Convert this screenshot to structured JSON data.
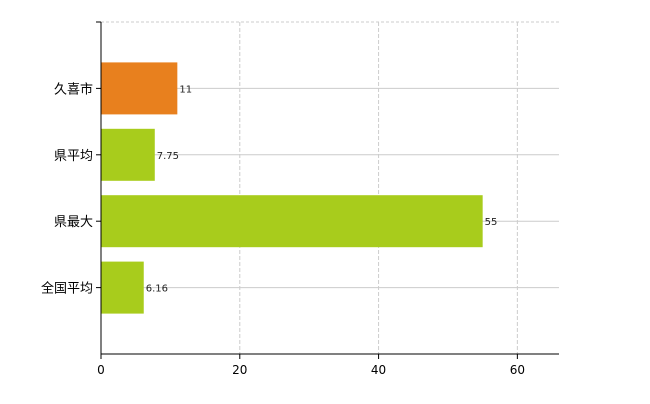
{
  "chart_data": {
    "type": "bar",
    "orientation": "horizontal",
    "categories": [
      "久喜市",
      "県平均",
      "県最大",
      "全国平均"
    ],
    "values": [
      11,
      7.75,
      55,
      6.16
    ],
    "value_labels": [
      "11",
      "7.75",
      "55",
      "6.16"
    ],
    "bar_colors": [
      "#e8801e",
      "#a8cc1c",
      "#a8cc1c",
      "#a8cc1c"
    ],
    "xlim": [
      0,
      66
    ],
    "xticks": [
      0,
      20,
      40,
      60
    ],
    "grid": true,
    "legend": "none",
    "title": "",
    "xlabel": "",
    "ylabel": ""
  }
}
